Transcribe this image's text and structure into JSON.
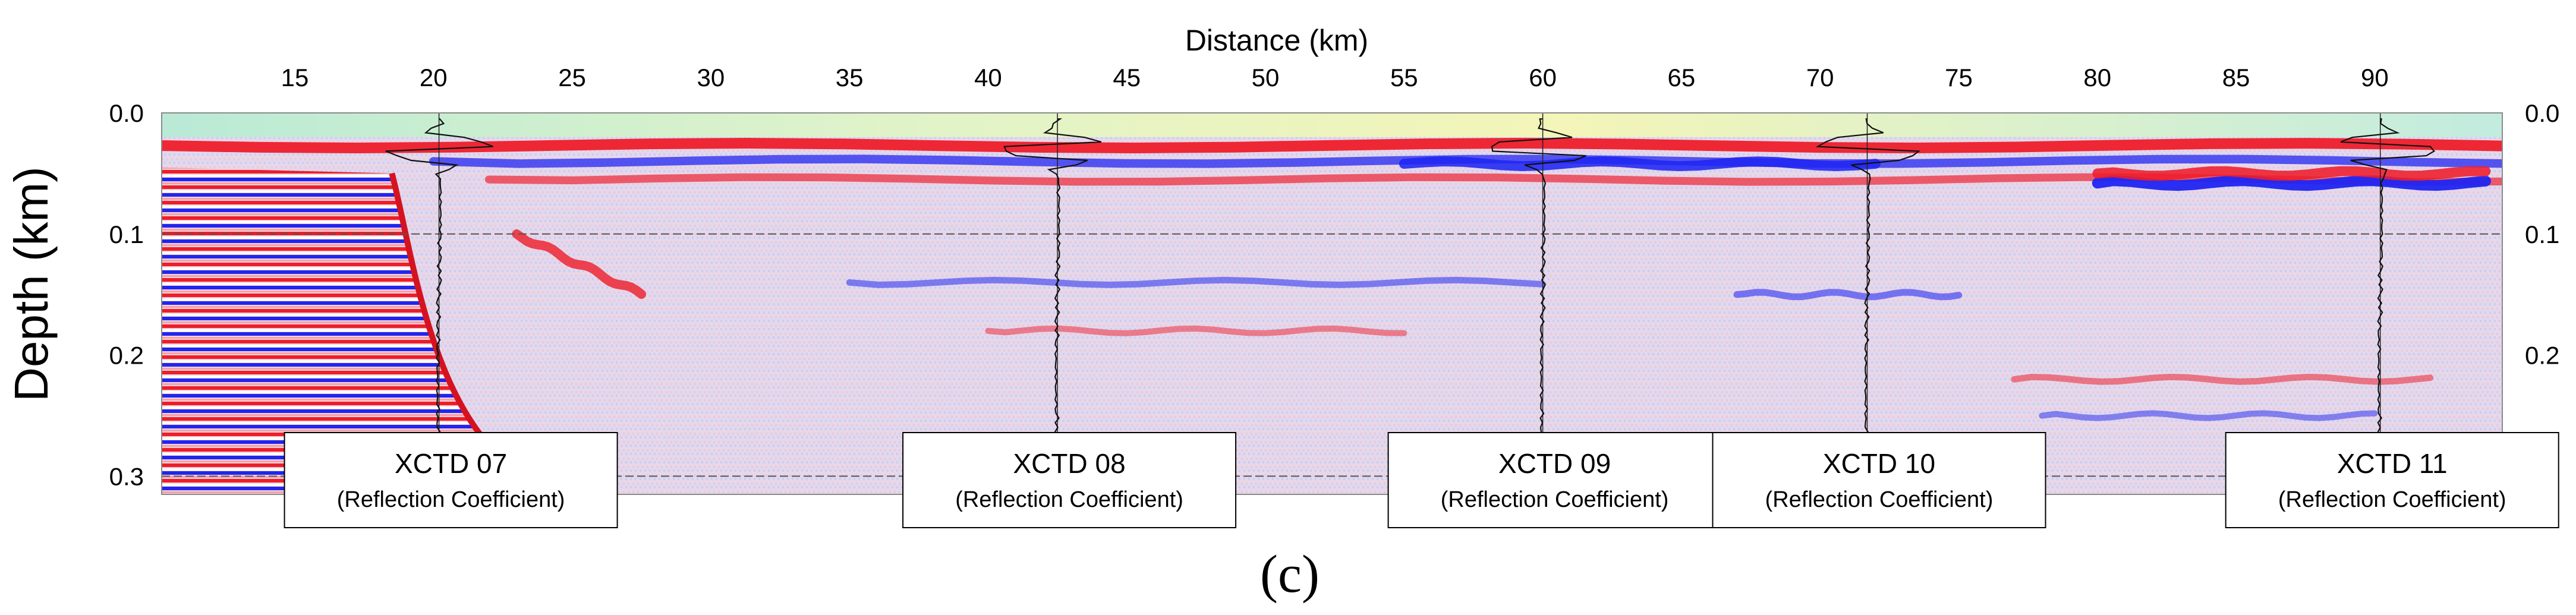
{
  "figure": {
    "panel_label": "(c)"
  },
  "chart_data": {
    "type": "heatmap",
    "title": "",
    "xlabel": "Distance (km)",
    "ylabel": "Depth (km)",
    "xlim": [
      10.2,
      94.6
    ],
    "ylim": [
      0.0,
      0.315
    ],
    "x_axis_position": "top",
    "x_ticks": [
      15,
      20,
      25,
      30,
      35,
      40,
      45,
      50,
      55,
      60,
      65,
      70,
      75,
      80,
      85,
      90
    ],
    "y_ticks": [
      0.0,
      0.1,
      0.2,
      0.3
    ],
    "y_tick_labels": [
      "0.0",
      "0.1",
      "0.2",
      "0.3"
    ],
    "y_ticks_on_both_sides": true,
    "reference_depths": [
      0.1,
      0.3
    ],
    "colormap": [
      "#1a1aff",
      "#ffffff",
      "#ff1a1a"
    ],
    "description_note": "seismic reflection section; positive amplitude red, negative blue",
    "reflectors": [
      {
        "x_start": 10.2,
        "x_end": 94.6,
        "depth": 0.027,
        "polarity": "positive",
        "strength": 1.0
      },
      {
        "x_start": 20.0,
        "x_end": 94.6,
        "depth": 0.04,
        "polarity": "negative",
        "strength": 0.7
      },
      {
        "x_start": 22.0,
        "x_end": 94.6,
        "depth": 0.055,
        "polarity": "positive",
        "strength": 0.6
      },
      {
        "x_start": 55.0,
        "x_end": 72.0,
        "depth": 0.042,
        "polarity": "negative",
        "strength": 0.9
      },
      {
        "x_start": 80.0,
        "x_end": 94.0,
        "depth": 0.058,
        "polarity": "negative",
        "strength": 1.0
      },
      {
        "x_start": 80.0,
        "x_end": 94.0,
        "depth": 0.05,
        "polarity": "positive",
        "strength": 0.9
      },
      {
        "x_start": 23.0,
        "x_end": 27.5,
        "depth_start": 0.1,
        "depth_end": 0.15,
        "polarity": "positive",
        "strength": 0.8
      },
      {
        "x_start": 35.0,
        "x_end": 60.0,
        "depth": 0.14,
        "polarity": "negative",
        "strength": 0.4
      },
      {
        "x_start": 40.0,
        "x_end": 55.0,
        "depth": 0.18,
        "polarity": "positive",
        "strength": 0.35
      },
      {
        "x_start": 67.0,
        "x_end": 75.0,
        "depth": 0.15,
        "polarity": "negative",
        "strength": 0.45
      },
      {
        "x_start": 77.0,
        "x_end": 92.0,
        "depth": 0.22,
        "polarity": "positive",
        "strength": 0.4
      },
      {
        "x_start": 78.0,
        "x_end": 90.0,
        "depth": 0.25,
        "polarity": "negative",
        "strength": 0.35
      }
    ],
    "shelf_block": {
      "x_start": 10.2,
      "x_end": 18.5,
      "depth_top": 0.045,
      "slope_to_x": 25.5,
      "slope_to_depth": 0.315
    },
    "xctd_profiles": [
      {
        "name": "XCTD 07",
        "subtitle": "(Reflection Coefficient)",
        "x": 20.2
      },
      {
        "name": "XCTD 08",
        "subtitle": "(Reflection Coefficient)",
        "x": 42.5
      },
      {
        "name": "XCTD 09",
        "subtitle": "(Reflection Coefficient)",
        "x": 60.0
      },
      {
        "name": "XCTD 10",
        "subtitle": "(Reflection Coefficient)",
        "x": 71.7
      },
      {
        "name": "XCTD 11",
        "subtitle": "(Reflection Coefficient)",
        "x": 90.2
      }
    ]
  }
}
